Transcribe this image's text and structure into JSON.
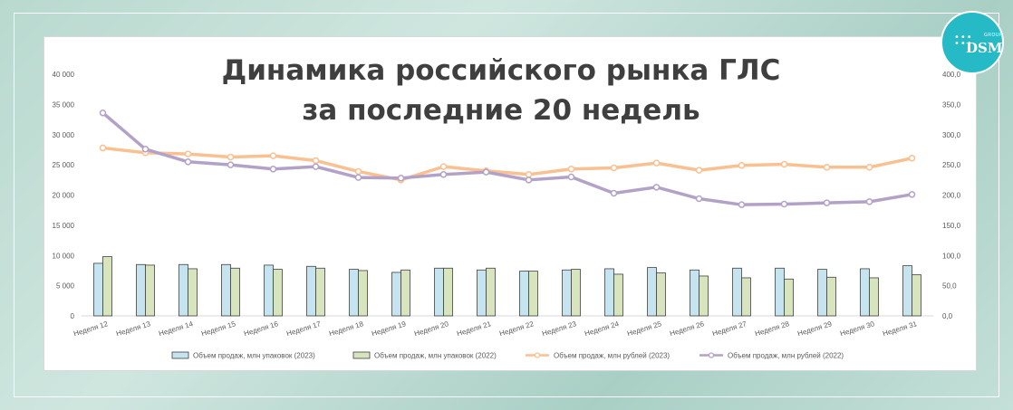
{
  "title": {
    "line1": "Динамика российского рынка ГЛС",
    "line2": "за последние 20 недель"
  },
  "logo": {
    "brand": "DSM",
    "group": "GROUP"
  },
  "colors": {
    "bar2023": "#c5e4ef",
    "bar2022": "#d7e4bd",
    "line2023": "#fac090",
    "line2022": "#b3a2c7",
    "axis": "#595959",
    "grid": "#d9d9d9"
  },
  "chart_data": {
    "type": "bar",
    "categories": [
      "Неделя 12",
      "Неделя 13",
      "Неделя 14",
      "Неделя 15",
      "Неделя 16",
      "Неделя 17",
      "Неделя 18",
      "Неделя 19",
      "Неделя 20",
      "Неделя 21",
      "Неделя 22",
      "Неделя 23",
      "Неделя 24",
      "Неделя 25",
      "Неделя 26",
      "Неделя 27",
      "Неделя 28",
      "Неделя 29",
      "Неделя 30",
      "Неделя 31"
    ],
    "left_axis": {
      "min": 0,
      "max": 40000,
      "ticks": [
        "0",
        "5 000",
        "10 000",
        "15 000",
        "20 000",
        "25 000",
        "30 000",
        "35 000",
        "40 000"
      ]
    },
    "right_axis": {
      "min": 0,
      "max": 400,
      "ticks": [
        "0,0",
        "50,0",
        "100,0",
        "150,0",
        "200,0",
        "250,0",
        "300,0",
        "350,0",
        "400,0"
      ]
    },
    "series": [
      {
        "name": "Объем продаж, млн упаковок (2023)",
        "kind": "bar",
        "axis": "left",
        "values": [
          8700,
          8500,
          8500,
          8500,
          8400,
          8200,
          7700,
          7200,
          7900,
          7600,
          7400,
          7600,
          7800,
          8000,
          7600,
          7900,
          7900,
          7700,
          7800,
          8300
        ]
      },
      {
        "name": "Объем продаж, млн упаковок (2022)",
        "kind": "bar",
        "axis": "left",
        "values": [
          9800,
          8400,
          7800,
          7900,
          7700,
          7900,
          7500,
          7600,
          7900,
          7900,
          7400,
          7700,
          6900,
          7100,
          6600,
          6300,
          6100,
          6400,
          6300,
          6800
        ]
      },
      {
        "name": "Объем продаж, млн рублей (2023)",
        "kind": "line",
        "axis": "right",
        "values": [
          278,
          270,
          268,
          263,
          265,
          257,
          239,
          225,
          247,
          240,
          234,
          243,
          245,
          253,
          241,
          249,
          251,
          246,
          246,
          261
        ]
      },
      {
        "name": "Объем продаж, млн рублей (2022)",
        "kind": "line",
        "axis": "right",
        "values": [
          336,
          276,
          255,
          250,
          243,
          247,
          229,
          228,
          234,
          238,
          225,
          230,
          203,
          213,
          194,
          184,
          185,
          187,
          189,
          201
        ]
      }
    ],
    "legend_position": "bottom",
    "grid": false
  }
}
